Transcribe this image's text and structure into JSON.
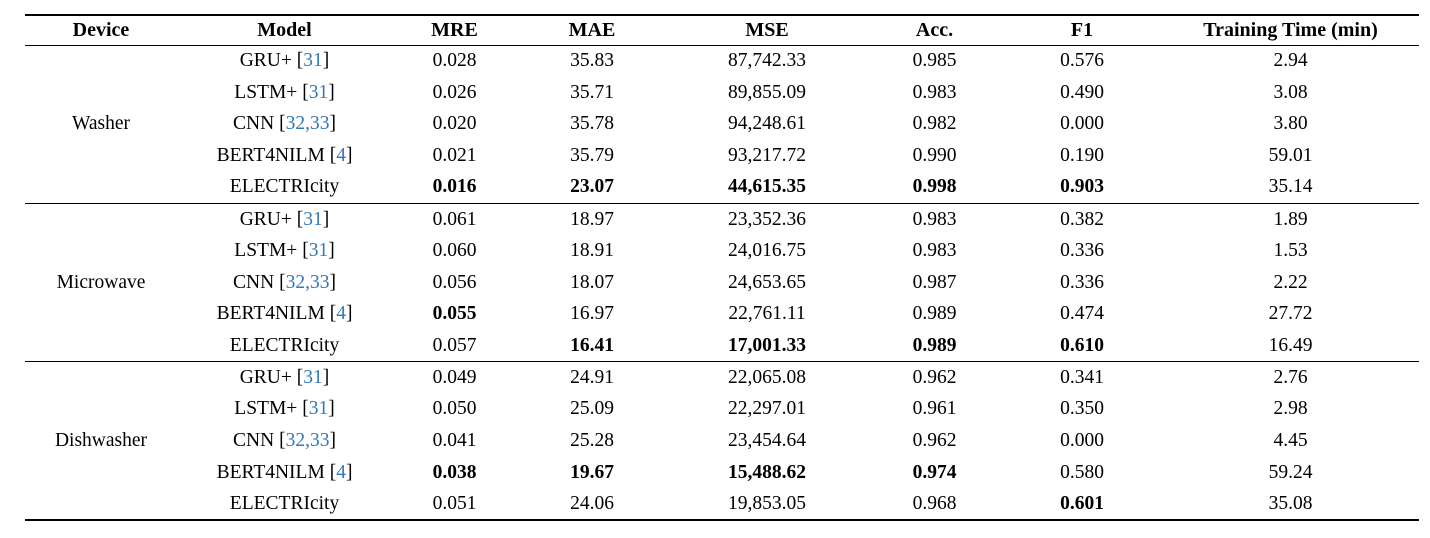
{
  "meta": {
    "background_color": "#ffffff",
    "text_color": "#000000",
    "rule_color": "#000000",
    "link_color": "#3478b6"
  },
  "table": {
    "columns": [
      {
        "key": "device",
        "label": "Device"
      },
      {
        "key": "model",
        "label": "Model"
      },
      {
        "key": "mre",
        "label": "MRE"
      },
      {
        "key": "mae",
        "label": "MAE"
      },
      {
        "key": "mse",
        "label": "MSE"
      },
      {
        "key": "acc",
        "label": "Acc."
      },
      {
        "key": "f1",
        "label": "F1"
      },
      {
        "key": "time",
        "label": "Training Time (min)"
      }
    ],
    "metric_keys": [
      "mre",
      "mae",
      "mse",
      "acc",
      "f1",
      "time"
    ],
    "sections": [
      {
        "device": "Washer",
        "rows": [
          {
            "model": "GRU+",
            "cite": "31",
            "mre": "0.028",
            "mae": "35.83",
            "mse": "87,742.33",
            "acc": "0.985",
            "f1": "0.576",
            "time": "2.94",
            "bold": []
          },
          {
            "model": "LSTM+",
            "cite": "31",
            "mre": "0.026",
            "mae": "35.71",
            "mse": "89,855.09",
            "acc": "0.983",
            "f1": "0.490",
            "time": "3.08",
            "bold": []
          },
          {
            "model": "CNN",
            "cite": "32,33",
            "mre": "0.020",
            "mae": "35.78",
            "mse": "94,248.61",
            "acc": "0.982",
            "f1": "0.000",
            "time": "3.80",
            "bold": []
          },
          {
            "model": "BERT4NILM",
            "cite": "4",
            "mre": "0.021",
            "mae": "35.79",
            "mse": "93,217.72",
            "acc": "0.990",
            "f1": "0.190",
            "time": "59.01",
            "bold": []
          },
          {
            "model": "ELECTRIcity",
            "cite": "",
            "mre": "0.016",
            "mae": "23.07",
            "mse": "44,615.35",
            "acc": "0.998",
            "f1": "0.903",
            "time": "35.14",
            "bold": [
              "mre",
              "mae",
              "mse",
              "acc",
              "f1"
            ]
          }
        ]
      },
      {
        "device": "Microwave",
        "rows": [
          {
            "model": "GRU+",
            "cite": "31",
            "mre": "0.061",
            "mae": "18.97",
            "mse": "23,352.36",
            "acc": "0.983",
            "f1": "0.382",
            "time": "1.89",
            "bold": []
          },
          {
            "model": "LSTM+",
            "cite": "31",
            "mre": "0.060",
            "mae": "18.91",
            "mse": "24,016.75",
            "acc": "0.983",
            "f1": "0.336",
            "time": "1.53",
            "bold": []
          },
          {
            "model": "CNN",
            "cite": "32,33",
            "mre": "0.056",
            "mae": "18.07",
            "mse": "24,653.65",
            "acc": "0.987",
            "f1": "0.336",
            "time": "2.22",
            "bold": []
          },
          {
            "model": "BERT4NILM",
            "cite": "4",
            "mre": "0.055",
            "mae": "16.97",
            "mse": "22,761.11",
            "acc": "0.989",
            "f1": "0.474",
            "time": "27.72",
            "bold": [
              "mre"
            ]
          },
          {
            "model": "ELECTRIcity",
            "cite": "",
            "mre": "0.057",
            "mae": "16.41",
            "mse": "17,001.33",
            "acc": "0.989",
            "f1": "0.610",
            "time": "16.49",
            "bold": [
              "mae",
              "mse",
              "acc",
              "f1"
            ]
          }
        ]
      },
      {
        "device": "Dishwasher",
        "rows": [
          {
            "model": "GRU+",
            "cite": "31",
            "mre": "0.049",
            "mae": "24.91",
            "mse": "22,065.08",
            "acc": "0.962",
            "f1": "0.341",
            "time": "2.76",
            "bold": []
          },
          {
            "model": "LSTM+",
            "cite": "31",
            "mre": "0.050",
            "mae": "25.09",
            "mse": "22,297.01",
            "acc": "0.961",
            "f1": "0.350",
            "time": "2.98",
            "bold": []
          },
          {
            "model": "CNN",
            "cite": "32,33",
            "mre": "0.041",
            "mae": "25.28",
            "mse": "23,454.64",
            "acc": "0.962",
            "f1": "0.000",
            "time": "4.45",
            "bold": []
          },
          {
            "model": "BERT4NILM",
            "cite": "4",
            "mre": "0.038",
            "mae": "19.67",
            "mse": "15,488.62",
            "acc": "0.974",
            "f1": "0.580",
            "time": "59.24",
            "bold": [
              "mre",
              "mae",
              "mse",
              "acc"
            ]
          },
          {
            "model": "ELECTRIcity",
            "cite": "",
            "mre": "0.051",
            "mae": "24.06",
            "mse": "19,853.05",
            "acc": "0.968",
            "f1": "0.601",
            "time": "35.08",
            "bold": [
              "f1"
            ]
          }
        ]
      }
    ]
  }
}
